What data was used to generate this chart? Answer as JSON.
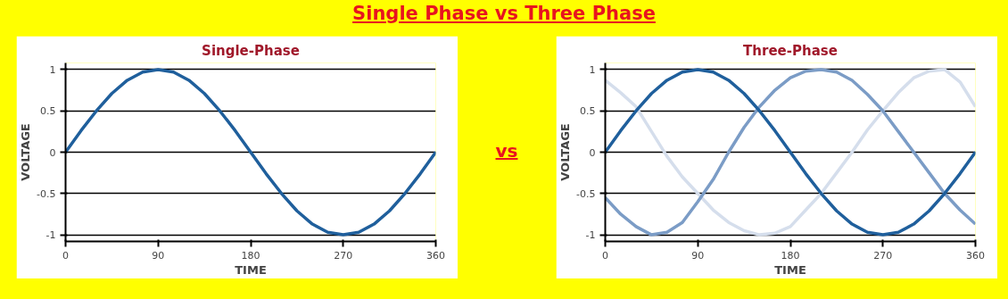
{
  "chart_data": [
    {
      "type": "line",
      "title": "Single-Phase",
      "xlabel": "TIME",
      "ylabel": "VOLTAGE",
      "annotations": [
        "Single Phase vs Three Phase",
        "vs"
      ],
      "x": [
        0,
        15,
        30,
        45,
        60,
        75,
        90,
        105,
        120,
        135,
        150,
        165,
        180,
        195,
        210,
        225,
        240,
        255,
        270,
        285,
        300,
        315,
        330,
        345,
        360
      ],
      "series": [
        {
          "color": "#1f5f9c",
          "values": [
            0,
            0.26,
            0.5,
            0.71,
            0.87,
            0.97,
            1,
            0.97,
            0.87,
            0.71,
            0.5,
            0.26,
            0,
            -0.26,
            -0.5,
            -0.71,
            -0.87,
            -0.97,
            -1,
            -0.97,
            -0.87,
            -0.71,
            -0.5,
            -0.26,
            0
          ]
        }
      ],
      "xlim": [
        0,
        360
      ],
      "xticks": [
        0,
        90,
        180,
        270,
        360
      ],
      "ylim": [
        -1,
        1
      ],
      "yticks": [
        -1,
        -0.5,
        0,
        0.5,
        1
      ],
      "grid": "y"
    },
    {
      "type": "line",
      "title": "Three-Phase",
      "xlabel": "TIME",
      "ylabel": "VOLTAGE",
      "x": [
        0,
        15,
        30,
        45,
        60,
        75,
        90,
        105,
        120,
        135,
        150,
        165,
        180,
        195,
        210,
        225,
        240,
        255,
        270,
        285,
        300,
        315,
        330,
        345,
        360
      ],
      "series": [
        {
          "color": "#d5deec",
          "values": [
            0.87,
            0.72,
            0.55,
            0.25,
            -0.05,
            -0.3,
            -0.5,
            -0.7,
            -0.85,
            -0.95,
            -1,
            -0.98,
            -0.9,
            -0.7,
            -0.5,
            -0.25,
            0,
            0.27,
            0.5,
            0.72,
            0.9,
            0.98,
            1,
            0.85,
            0.55
          ]
        },
        {
          "color": "#7b9cc6",
          "values": [
            -0.55,
            -0.75,
            -0.9,
            -1,
            -0.97,
            -0.85,
            -0.6,
            -0.33,
            0,
            0.3,
            0.55,
            0.75,
            0.9,
            0.98,
            1,
            0.97,
            0.87,
            0.7,
            0.5,
            0.25,
            0,
            -0.25,
            -0.5,
            -0.7,
            -0.87
          ]
        },
        {
          "color": "#1f5f9c",
          "values": [
            0,
            0.26,
            0.5,
            0.71,
            0.87,
            0.97,
            1,
            0.97,
            0.87,
            0.71,
            0.5,
            0.26,
            0,
            -0.26,
            -0.5,
            -0.71,
            -0.87,
            -0.97,
            -1,
            -0.97,
            -0.87,
            -0.71,
            -0.5,
            -0.26,
            0
          ]
        }
      ],
      "xlim": [
        0,
        360
      ],
      "xticks": [
        0,
        90,
        180,
        270,
        360
      ],
      "ylim": [
        -1,
        1
      ],
      "yticks": [
        -1,
        -0.5,
        0,
        0.5,
        1
      ],
      "grid": "y"
    }
  ]
}
